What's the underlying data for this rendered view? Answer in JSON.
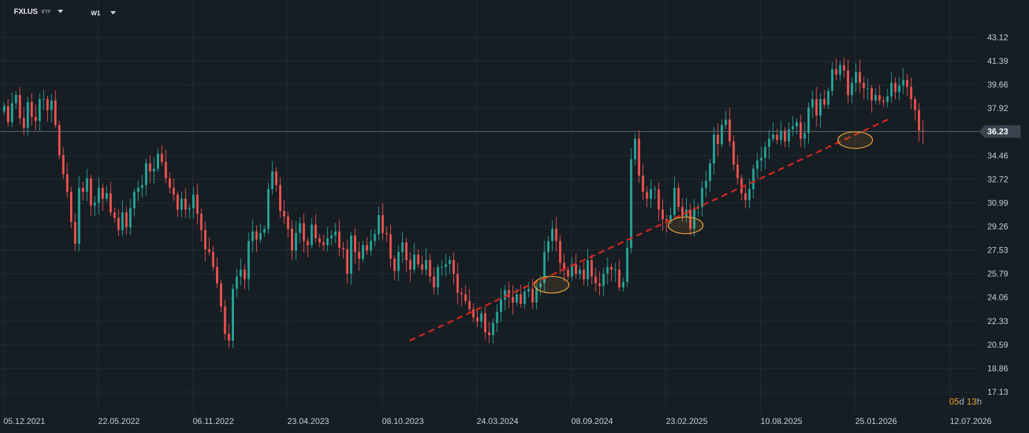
{
  "header": {
    "symbol": "FXI.US",
    "type": "ETF",
    "timeframe": "W1"
  },
  "countdown": {
    "days": "05",
    "days_unit": "d",
    "hours": "13",
    "hours_unit": "h"
  },
  "colors": {
    "background": "#161d23",
    "grid": "#242d35",
    "up": "#26a69a",
    "down": "#ef5350",
    "trendline": "#d0281e",
    "highlight": "#e8a33c",
    "price_line": "#5f6b76",
    "price_tag": "#3a4550"
  },
  "chart_data": {
    "type": "candlestick",
    "y_ticks": [
      "43.12",
      "41.39",
      "39.66",
      "37.92",
      "36.23",
      "34.46",
      "32.72",
      "30.99",
      "29.26",
      "27.53",
      "25.79",
      "24.06",
      "22.33",
      "20.59",
      "18.86",
      "17.13"
    ],
    "x_ticks": [
      "05.12.2021",
      "22.05.2022",
      "06.11.2022",
      "23.04.2023",
      "08.10.2023",
      "24.03.2024",
      "08.09.2024",
      "23.02.2025",
      "10.08.2025",
      "25.01.2026",
      "12.07.2026"
    ],
    "ylim": [
      17.13,
      43.12
    ],
    "current_price": 36.23,
    "current_price_label": "36.23",
    "trendline": {
      "start": [
        "2023-11-26",
        20.9
      ],
      "end": [
        "2026-03-29",
        37.2
      ],
      "style": "dashed"
    },
    "highlights": [
      {
        "date": "2024-08-04",
        "price": 25.0
      },
      {
        "date": "2025-03-30",
        "price": 29.35
      },
      {
        "date": "2026-01-25",
        "price": 35.6
      }
    ],
    "closes": [
      38.1,
      36.9,
      38.3,
      38.9,
      37.2,
      36.5,
      38.4,
      37.3,
      37.0,
      38.6,
      38.6,
      37.8,
      38.5,
      36.7,
      34.5,
      33.1,
      31.8,
      29.6,
      28.0,
      32.1,
      31.8,
      32.8,
      30.8,
      31.0,
      32.1,
      31.3,
      31.7,
      30.3,
      29.9,
      29.0,
      30.3,
      29.2,
      30.6,
      31.8,
      32.1,
      32.3,
      33.9,
      33.3,
      33.5,
      34.6,
      34.0,
      32.8,
      32.1,
      31.6,
      30.5,
      31.3,
      30.5,
      30.6,
      31.6,
      30.2,
      29.0,
      27.6,
      27.4,
      26.3,
      25.1,
      23.4,
      21.4,
      20.9,
      24.7,
      25.6,
      26.1,
      25.4,
      28.2,
      28.9,
      28.3,
      28.8,
      29.1,
      32.0,
      33.3,
      32.3,
      30.4,
      30.0,
      29.1,
      27.5,
      28.8,
      29.5,
      28.2,
      27.9,
      29.4,
      28.4,
      28.1,
      27.9,
      28.4,
      28.6,
      28.9,
      27.7,
      27.6,
      25.8,
      28.6,
      27.4,
      26.9,
      27.9,
      27.5,
      28.2,
      28.7,
      30.1,
      28.8,
      28.7,
      26.9,
      26.0,
      27.4,
      28.1,
      26.8,
      26.1,
      27.2,
      26.5,
      26.1,
      26.8,
      25.6,
      24.8,
      26.3,
      26.3,
      26.5,
      26.8,
      25.8,
      24.4,
      24.3,
      23.8,
      23.2,
      22.6,
      22.3,
      22.9,
      21.5,
      21.3,
      22.2,
      23.0,
      23.9,
      24.6,
      24.1,
      23.7,
      24.3,
      23.6,
      24.5,
      24.7,
      23.7,
      24.8,
      25.1,
      27.4,
      28.2,
      29.1,
      28.2,
      26.6,
      26.1,
      25.6,
      26.5,
      25.8,
      26.1,
      25.4,
      26.8,
      25.6,
      25.1,
      24.9,
      25.8,
      26.3,
      26.1,
      26.1,
      24.8,
      25.2,
      27.7,
      34.2,
      35.7,
      33.0,
      31.8,
      31.3,
      32.0,
      32.0,
      30.5,
      29.8,
      29.7,
      30.1,
      32.1,
      30.7,
      30.0,
      30.5,
      29.1,
      30.6,
      30.7,
      32.1,
      32.6,
      33.9,
      36.0,
      35.3,
      36.7,
      37.1,
      35.5,
      33.8,
      32.8,
      31.7,
      31.2,
      32.0,
      33.5,
      34.1,
      34.3,
      35.1,
      35.7,
      36.0,
      35.6,
      36.3,
      35.5,
      36.4,
      36.6,
      36.9,
      35.7,
      36.1,
      38.0,
      38.6,
      37.4,
      38.6,
      38.2,
      39.2,
      40.8,
      40.4,
      41.1,
      40.7,
      38.9,
      39.8,
      40.6,
      39.8,
      39.4,
      39.4,
      38.5,
      38.9,
      38.5,
      38.4,
      38.8,
      39.8,
      39.1,
      39.6,
      40.0,
      39.5,
      38.6,
      37.8,
      36.3,
      36.2
    ]
  }
}
